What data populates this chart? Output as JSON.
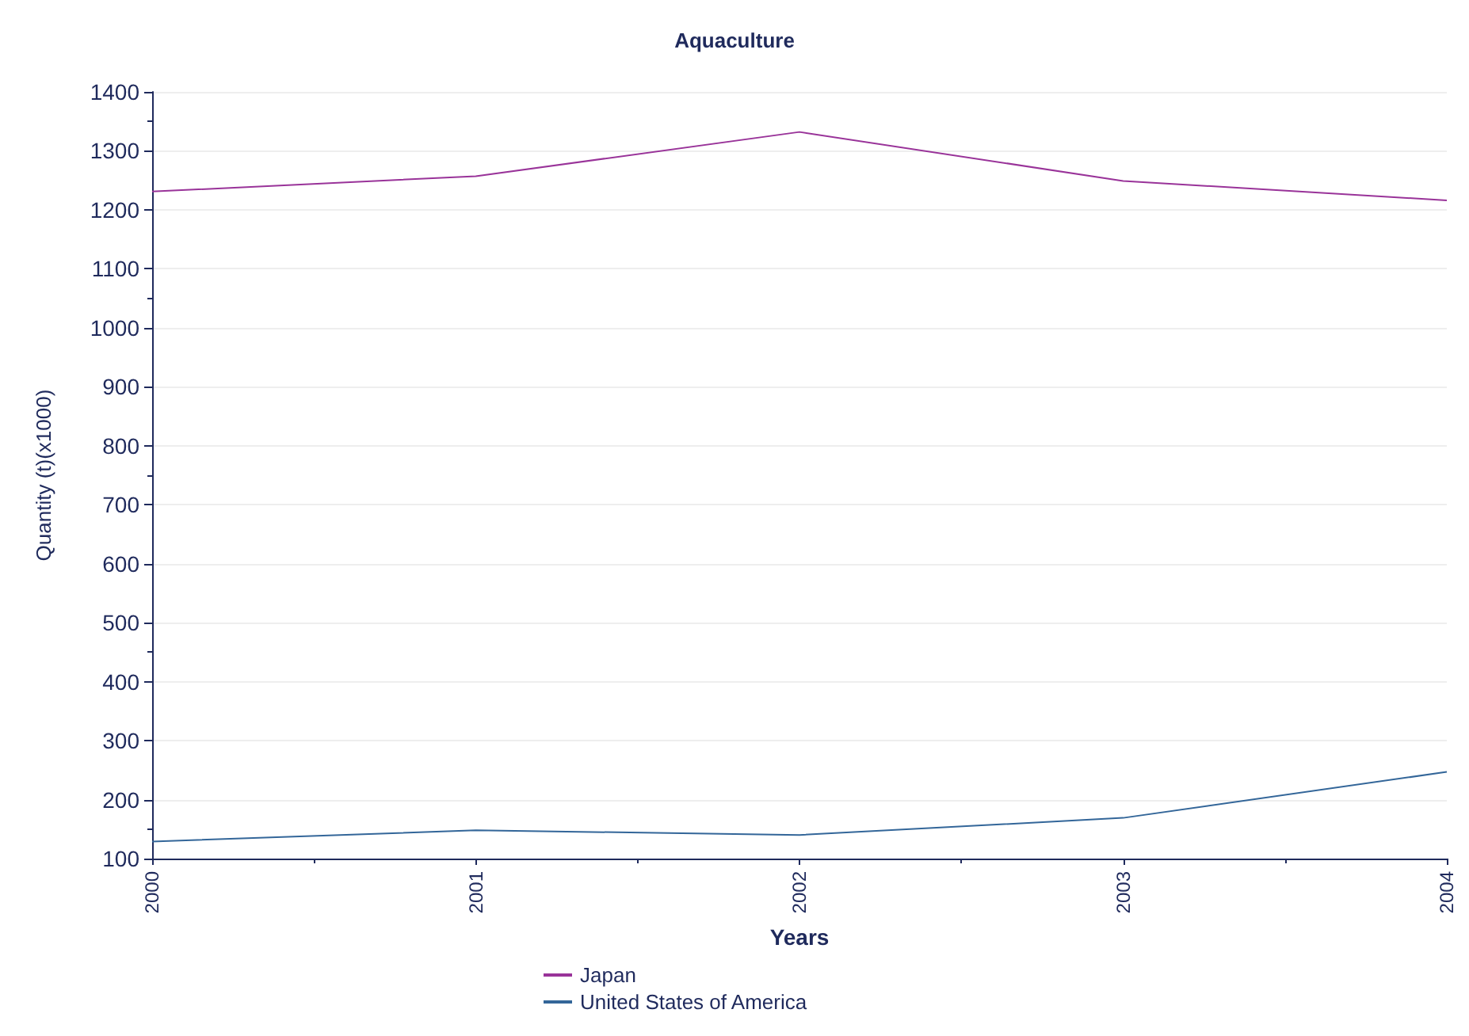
{
  "chart_data": {
    "type": "line",
    "title": "Aquaculture",
    "xlabel": "Years",
    "ylabel": "Quantity (t)(x1000)",
    "x": [
      2000,
      2001,
      2002,
      2003,
      2004
    ],
    "series": [
      {
        "name": "Japan",
        "color": "#993399",
        "values": [
          1231,
          1257,
          1332,
          1249,
          1216
        ]
      },
      {
        "name": "United States of America",
        "color": "#336699",
        "values": [
          129,
          148,
          140,
          169,
          247
        ]
      }
    ],
    "xlim": [
      2000,
      2004
    ],
    "xticks": [
      2000,
      2001,
      2002,
      2003,
      2004
    ],
    "ylim": [
      100,
      1400
    ],
    "yticks": [
      100,
      200,
      300,
      400,
      500,
      600,
      700,
      800,
      900,
      1000,
      1100,
      1200,
      1300,
      1400
    ],
    "grid": "y",
    "legend": "bottom",
    "marker": "none",
    "line_style": "solid"
  }
}
